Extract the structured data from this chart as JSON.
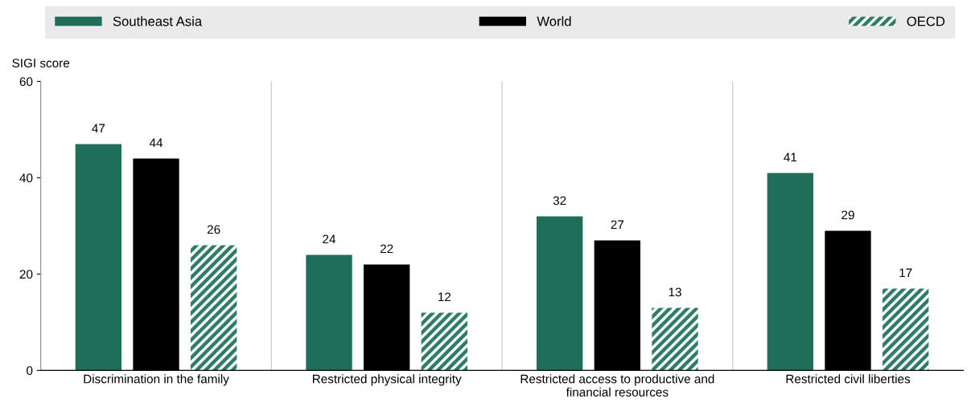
{
  "chart_data": {
    "type": "bar",
    "ylabel": "SIGI score",
    "categories": [
      "Discrimination in the family",
      "Restricted physical integrity",
      "Restricted access to productive and\nfinancial resources",
      "Restricted civil liberties"
    ],
    "series": [
      {
        "name": "Southeast Asia",
        "color": "#1f6e5a",
        "values": [
          47,
          24,
          32,
          41
        ]
      },
      {
        "name": "World",
        "color": "#000000",
        "values": [
          44,
          22,
          27,
          29
        ]
      },
      {
        "name": "OECD",
        "color": "#2e7d66",
        "values": [
          26,
          12,
          13,
          17
        ]
      }
    ],
    "ylim": [
      0,
      60
    ],
    "yticks": [
      0,
      20,
      40,
      60
    ],
    "grid": false,
    "legend": "top",
    "data_labels": true
  }
}
